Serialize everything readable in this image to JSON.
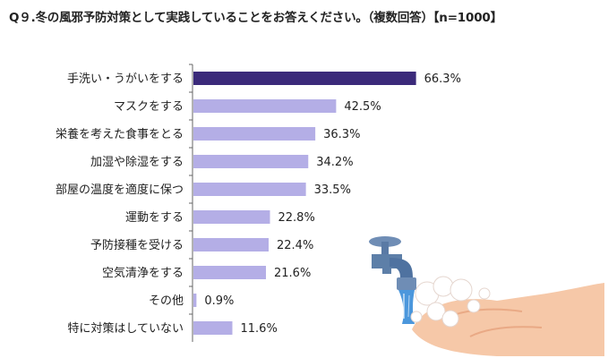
{
  "title": "Q９.冬の風邪予防対策として実践していることをお答えください。（複数回答）【n=1000】",
  "chart_data": {
    "type": "bar",
    "orientation": "horizontal",
    "title": "Q９.冬の風邪予防対策として実践していることをお答えください。（複数回答）【n=1000】",
    "categories": [
      "手洗い・うがいをする",
      "マスクをする",
      "栄養を考えた食事をとる",
      "加湿や除湿をする",
      "部屋の温度を適度に保つ",
      "運動をする",
      "予防接種を受ける",
      "空気清浄をする",
      "その他",
      "特に対策はしていない"
    ],
    "values": [
      66.3,
      42.5,
      36.3,
      34.2,
      33.5,
      22.8,
      22.4,
      21.6,
      0.9,
      11.6
    ],
    "value_labels": [
      "66.3%",
      "42.5%",
      "36.3%",
      "34.2%",
      "33.5%",
      "22.8%",
      "22.4%",
      "21.6%",
      "0.9%",
      "11.6%"
    ],
    "unit": "%",
    "xlim": [
      0,
      100
    ],
    "highlight_color": "#3b2a7a",
    "bar_color": "#b4aee6",
    "axis_color": "#666666"
  }
}
